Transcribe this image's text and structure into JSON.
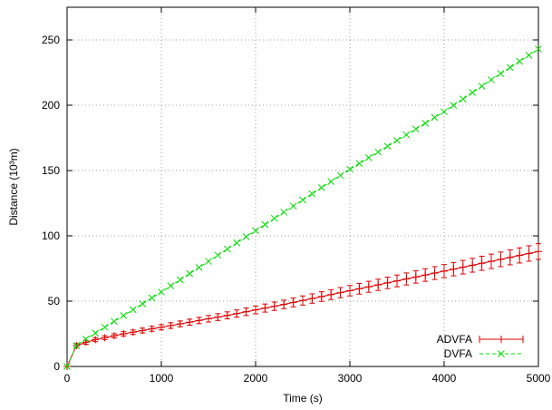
{
  "chart_data": {
    "type": "line",
    "xlabel": "Time (s)",
    "ylabel": "Distance (10³m)",
    "xlim": [
      0,
      5000
    ],
    "ylim": [
      0,
      275
    ],
    "xticks": [
      0,
      1000,
      2000,
      3000,
      4000,
      5000
    ],
    "yticks": [
      0,
      50,
      100,
      150,
      200,
      250
    ],
    "grid": true,
    "legend_position": "bottom-right",
    "series": [
      {
        "name": "ADVFA",
        "color": "#dd0000",
        "marker": "plus",
        "error_bars": true,
        "x": [
          0,
          100,
          200,
          300,
          400,
          500,
          600,
          700,
          800,
          900,
          1000,
          1100,
          1200,
          1300,
          1400,
          1500,
          1600,
          1700,
          1800,
          1900,
          2000,
          2100,
          2200,
          2300,
          2400,
          2500,
          2600,
          2700,
          2800,
          2900,
          3000,
          3100,
          3200,
          3300,
          3400,
          3500,
          3600,
          3700,
          3800,
          3900,
          4000,
          4100,
          4200,
          4300,
          4400,
          4500,
          4600,
          4700,
          4800,
          4900,
          5000
        ],
        "y": [
          0,
          16,
          18.5,
          20.5,
          22,
          23.5,
          25,
          26.2,
          27.5,
          28.8,
          30,
          31.3,
          32.6,
          33.9,
          35.2,
          36.5,
          37.8,
          39.1,
          40.5,
          41.9,
          43.3,
          44.7,
          46.1,
          47.5,
          49,
          50.5,
          52,
          53.5,
          55,
          56.5,
          58,
          59.5,
          61,
          62.5,
          64,
          65.5,
          67,
          68.5,
          70,
          71.5,
          73,
          74.5,
          76,
          77.5,
          79,
          80.5,
          82,
          83.5,
          85,
          86.5,
          88
        ],
        "err": [
          0,
          1.5,
          1.5,
          1.5,
          1.5,
          1.5,
          1.6,
          1.7,
          1.8,
          1.9,
          2,
          2.1,
          2.2,
          2.3,
          2.4,
          2.5,
          2.6,
          2.7,
          2.8,
          2.9,
          3,
          3.1,
          3.2,
          3.3,
          3.4,
          3.5,
          3.6,
          3.7,
          3.8,
          3.9,
          4,
          4.1,
          4.2,
          4.3,
          4.4,
          4.5,
          4.6,
          4.7,
          4.8,
          4.9,
          5,
          5.1,
          5.2,
          5.3,
          5.4,
          5.5,
          5.6,
          5.7,
          5.8,
          5.9,
          6
        ]
      },
      {
        "name": "DVFA",
        "color": "#00dd00",
        "marker": "cross",
        "error_bars": false,
        "x": [
          0,
          100,
          200,
          300,
          400,
          500,
          600,
          700,
          800,
          900,
          1000,
          1100,
          1200,
          1300,
          1400,
          1500,
          1600,
          1700,
          1800,
          1900,
          2000,
          2100,
          2200,
          2300,
          2400,
          2500,
          2600,
          2700,
          2800,
          2900,
          3000,
          3100,
          3200,
          3300,
          3400,
          3500,
          3600,
          3700,
          3800,
          3900,
          4000,
          4100,
          4200,
          4300,
          4400,
          4500,
          4600,
          4700,
          4800,
          4900,
          5000
        ],
        "y": [
          0,
          16,
          21,
          25.5,
          30,
          34.5,
          39,
          43.5,
          48,
          52.5,
          57,
          61.7,
          66.4,
          71.1,
          75.8,
          80.5,
          85.2,
          89.9,
          94.6,
          99.3,
          104,
          108.7,
          113.4,
          118.1,
          122.8,
          127.5,
          132.2,
          136.9,
          141.6,
          146.3,
          151,
          155.4,
          159.8,
          164.2,
          168.6,
          173,
          177.4,
          181.8,
          186.2,
          190.6,
          195,
          199.9,
          204.8,
          209.7,
          214.6,
          219.5,
          224.2,
          228.9,
          233.6,
          238.3,
          243
        ]
      }
    ]
  }
}
